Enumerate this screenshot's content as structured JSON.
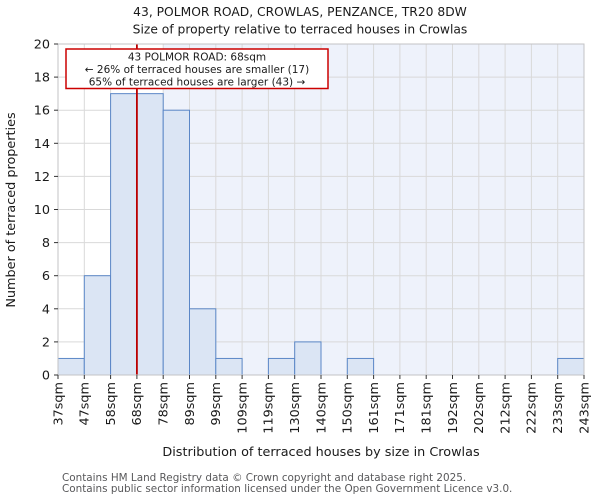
{
  "chart_data": {
    "type": "bar",
    "title": "43, POLMOR ROAD, CROWLAS, PENZANCE, TR20 8DW",
    "subtitle": "Size of property relative to terraced houses in Crowlas",
    "xlabel": "Distribution of terraced houses by size in Crowlas",
    "ylabel": "Number of terraced properties",
    "bin_edges_sqm": [
      37,
      47,
      58,
      68,
      78,
      89,
      99,
      109,
      119,
      130,
      140,
      150,
      161,
      171,
      181,
      192,
      202,
      212,
      222,
      233,
      243
    ],
    "x_tick_labels": [
      "37sqm",
      "47sqm",
      "58sqm",
      "68sqm",
      "78sqm",
      "89sqm",
      "99sqm",
      "109sqm",
      "119sqm",
      "130sqm",
      "140sqm",
      "150sqm",
      "161sqm",
      "171sqm",
      "181sqm",
      "192sqm",
      "202sqm",
      "212sqm",
      "222sqm",
      "233sqm",
      "243sqm"
    ],
    "values": [
      1,
      6,
      17,
      17,
      16,
      4,
      1,
      0,
      1,
      2,
      0,
      1,
      0,
      0,
      0,
      0,
      0,
      0,
      0,
      1
    ],
    "ylim": [
      0,
      20
    ],
    "ytick_step": 2,
    "y_tick_labels": [
      "0",
      "2",
      "4",
      "6",
      "8",
      "10",
      "12",
      "14",
      "16",
      "18",
      "20"
    ],
    "grid": true,
    "legend": "none",
    "marker_value_sqm": 68,
    "shaded_region_start_sqm": 78,
    "colors": {
      "bar_fill": "#dbe5f4",
      "bar_edge": "#5b87c7",
      "marker_line": "#bb0000",
      "annotation_border": "#cc0000",
      "annotation_bg": "#ffffff",
      "shaded_bg": "#eef2fb",
      "grid": "#d9d9d9",
      "spine": "#c3c3c6",
      "tick": "#333333"
    }
  },
  "annotation": {
    "line1": "43 POLMOR ROAD: 68sqm",
    "line2": "← 26% of terraced houses are smaller (17)",
    "line3": "65% of terraced houses are larger (43) →"
  },
  "footer": {
    "line1": "Contains HM Land Registry data © Crown copyright and database right 2025.",
    "line2": "Contains public sector information licensed under the Open Government Licence v3.0."
  }
}
